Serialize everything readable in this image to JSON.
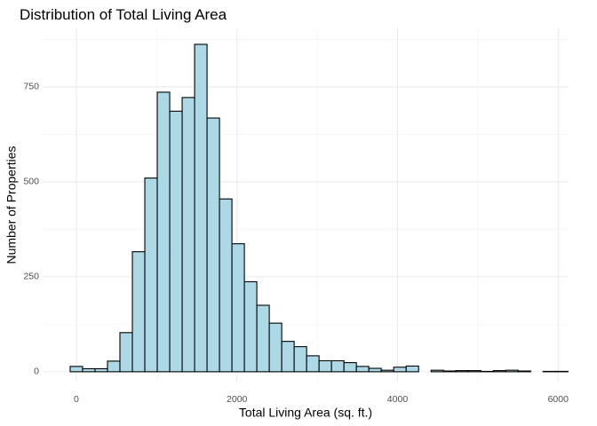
{
  "chart_data": {
    "type": "histogram",
    "title": "Distribution of Total Living Area",
    "x_label": "Total Living Area (sq. ft.)",
    "y_label": "Number of Properties",
    "bins": [
      -77.5,
      77.5,
      232.5,
      387.5,
      542.5,
      697.5,
      852.5,
      1007.5,
      1162.5,
      1317.5,
      1472.5,
      1627.5,
      1782.5,
      1937.5,
      2092.5,
      2247.5,
      2402.5,
      2557.5,
      2712.5,
      2867.5,
      3022.5,
      3177.5,
      3332.5,
      3487.5,
      3642.5,
      3797.5,
      3952.5,
      4107.5,
      4262.5,
      4417.5,
      4572.5,
      4727.5,
      4882.5,
      5037.5,
      5192.5,
      5347.5,
      5502.5,
      5657.5,
      5812.5,
      5967.5,
      6122.5
    ],
    "values": [
      14,
      8,
      8,
      28,
      103,
      316,
      510,
      736,
      686,
      722,
      862,
      668,
      455,
      337,
      237,
      175,
      128,
      80,
      66,
      42,
      29,
      29,
      24,
      14,
      9,
      4,
      12,
      15,
      0,
      4,
      2,
      3,
      3,
      1,
      3,
      4,
      2,
      0,
      1,
      1
    ],
    "color": "#add8e6",
    "edge_color": "#000000",
    "xlim": [
      -420,
      6130
    ],
    "ylim": [
      -26,
      904
    ],
    "xticks": [
      0,
      2000,
      4000,
      6000
    ],
    "yticks": [
      0,
      250,
      500,
      750
    ],
    "minor_xticks": [
      1000,
      3000,
      5000
    ],
    "minor_yticks": [
      125,
      375,
      625,
      875
    ],
    "grid": true
  }
}
